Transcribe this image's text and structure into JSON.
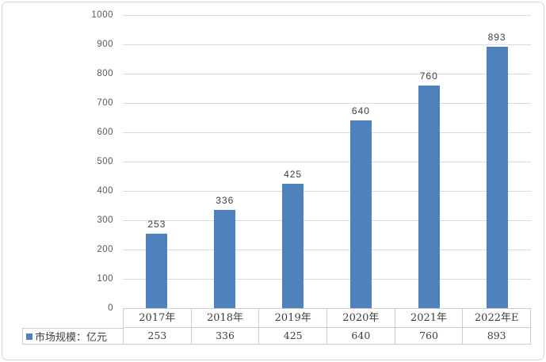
{
  "chart_data": {
    "type": "bar",
    "title": "",
    "xlabel": "",
    "ylabel": "",
    "categories": [
      "2017年",
      "2018年",
      "2019年",
      "2020年",
      "2021年",
      "2022年E"
    ],
    "values": [
      253,
      336,
      425,
      640,
      760,
      893
    ],
    "series_name": "市场规模：亿元",
    "ylim": [
      0,
      1000
    ],
    "y_ticks": [
      0,
      100,
      200,
      300,
      400,
      500,
      600,
      700,
      800,
      900,
      1000
    ],
    "grid": true,
    "show_data_labels": true,
    "data_table_shown": true,
    "legend_position": "bottom-left",
    "colors": {
      "bar": "#4F81BD",
      "gridline": "#DBDBDB",
      "table_border": "#CCCCCC",
      "label_text": "#3F3F3F",
      "tick_text": "#595959"
    }
  }
}
